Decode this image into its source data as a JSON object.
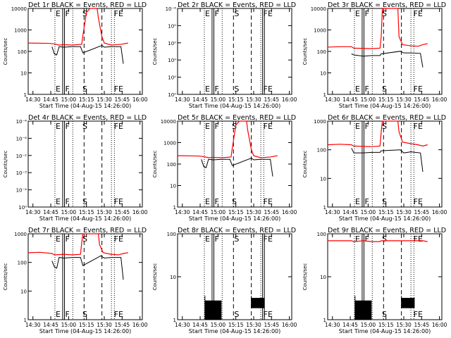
{
  "chart_data": {
    "type": "line",
    "colors": {
      "events": "#000000",
      "lld": "#ff0000"
    },
    "xtick_labels": [
      "14:30",
      "14:45",
      "15:00",
      "15:15",
      "15:30",
      "15:45",
      "16:00"
    ],
    "xlabel": "Start Time (04-Aug-15 14:26:00)",
    "ylabel": "Counts/sec",
    "x_range_minutes": [
      0,
      96
    ],
    "panels": [
      {
        "title": "Det 1r BLACK = Events, RED = LLD",
        "ylog": [
          1,
          14000
        ],
        "yticks": [
          "1",
          "10",
          "100",
          "1000",
          "10000"
        ],
        "lines_solid": [
          29,
          30.5
        ],
        "lines_dashed": [
          47,
          62
        ],
        "lines_dotted": [
          22.5,
          37.5,
          70,
          72.5
        ],
        "markers": [
          {
            "text": "E",
            "x": 22.5
          },
          {
            "text": "F",
            "x": 30.5
          },
          {
            "text": "S",
            "x": 45
          },
          {
            "text": "FE",
            "x": 71.5
          }
        ],
        "lld": [
          [
            0,
            300
          ],
          [
            18,
            290
          ],
          [
            22,
            270
          ],
          [
            26,
            240
          ],
          [
            30,
            250
          ],
          [
            37,
            240
          ],
          [
            45,
            260
          ],
          [
            46,
            700
          ],
          [
            49,
            9000
          ],
          [
            52,
            14000
          ],
          [
            58,
            14000
          ],
          [
            59,
            5000
          ],
          [
            62,
            600
          ],
          [
            64,
            300
          ],
          [
            70,
            240
          ],
          [
            74,
            250
          ],
          [
            78,
            260
          ],
          [
            84,
            300
          ]
        ],
        "events": [
          [
            20,
            200
          ],
          [
            22,
            90
          ],
          [
            24,
            80
          ],
          [
            26,
            200
          ],
          [
            30,
            190
          ],
          [
            37,
            200
          ],
          [
            44,
            200
          ],
          [
            46,
            100
          ],
          [
            62,
            230
          ],
          [
            64,
            190
          ],
          [
            70,
            200
          ],
          [
            78,
            200
          ],
          [
            80,
            30
          ]
        ]
      },
      {
        "title": "Det 2r BLACK = Events, RED = LLD",
        "ylog": [
          1,
          1.2
        ],
        "yticks": [
          "10⁰",
          "10⁰",
          "10⁰",
          "10⁰",
          "10⁰",
          "10⁻⁶"
        ],
        "lines_solid": [
          29,
          30.5,
          71.5,
          73
        ],
        "lines_dashed": [
          47,
          62
        ],
        "lines_dotted": [
          22.5,
          37.5,
          70
        ],
        "markers": [
          {
            "text": "E",
            "x": 22.5
          },
          {
            "text": "F",
            "x": 30.5
          },
          {
            "text": "S",
            "x": 47
          },
          {
            "text": "FE",
            "x": 71.5
          }
        ],
        "lld": [],
        "events": []
      },
      {
        "title": "Det 3r BLACK = Events, RED = LLD",
        "ylog": [
          1,
          14000
        ],
        "yticks": [
          "1",
          "10",
          "100",
          "1000",
          "10000"
        ],
        "lines_solid": [
          29,
          30.5
        ],
        "lines_dashed": [
          47,
          62
        ],
        "lines_dotted": [
          22.5,
          37.5,
          70,
          72.5
        ],
        "markers": [
          {
            "text": "E",
            "x": 22.5
          },
          {
            "text": "F",
            "x": 30.5
          },
          {
            "text": "S",
            "x": 45
          },
          {
            "text": "FE",
            "x": 71.5
          }
        ],
        "lld": [
          [
            0,
            190
          ],
          [
            10,
            200
          ],
          [
            20,
            200
          ],
          [
            22,
            170
          ],
          [
            30,
            165
          ],
          [
            37,
            160
          ],
          [
            44,
            170
          ],
          [
            45,
            600
          ],
          [
            46,
            14000
          ],
          [
            59,
            14000
          ],
          [
            60,
            600
          ],
          [
            63,
            250
          ],
          [
            70,
            220
          ],
          [
            76,
            210
          ],
          [
            80,
            250
          ],
          [
            84,
            280
          ]
        ],
        "events": [
          [
            20,
            90
          ],
          [
            22,
            80
          ],
          [
            30,
            70
          ],
          [
            37,
            75
          ],
          [
            44,
            75
          ],
          [
            45,
            90
          ],
          [
            61,
            120
          ],
          [
            64,
            100
          ],
          [
            70,
            100
          ],
          [
            78,
            95
          ],
          [
            80,
            20
          ]
        ]
      },
      {
        "title": "Det 4r BLACK = Events, RED = LLD",
        "ylog": [
          1,
          1.2
        ],
        "yticks": [
          "10⁰",
          "10⁻⁴",
          "10⁻³",
          "10⁻²",
          "10⁻⁶",
          "10⁻⁴"
        ],
        "lines_solid": [
          29,
          30.5
        ],
        "lines_dashed": [
          47,
          62
        ],
        "lines_dotted": [
          22.5,
          37.5,
          70,
          72.5
        ],
        "markers": [
          {
            "text": "E",
            "x": 22.5
          },
          {
            "text": "F",
            "x": 30.5
          },
          {
            "text": "S",
            "x": 45
          },
          {
            "text": "FE",
            "x": 71.5
          }
        ],
        "lld": [],
        "events": []
      },
      {
        "title": "Det 5r BLACK = Events, RED = LLD",
        "ylog": [
          1,
          14000
        ],
        "yticks": [
          "1",
          "10",
          "100",
          "1000",
          "10000"
        ],
        "lines_solid": [
          29,
          30.5
        ],
        "lines_dashed": [
          47,
          62
        ],
        "lines_dotted": [
          22.5,
          37.5,
          70,
          72.5
        ],
        "markers": [
          {
            "text": "E",
            "x": 22.5
          },
          {
            "text": "F",
            "x": 30.5
          },
          {
            "text": "S",
            "x": 45
          },
          {
            "text": "FE",
            "x": 71.5
          }
        ],
        "lld": [
          [
            0,
            300
          ],
          [
            18,
            290
          ],
          [
            22,
            270
          ],
          [
            26,
            240
          ],
          [
            30,
            250
          ],
          [
            37,
            240
          ],
          [
            45,
            260
          ],
          [
            46,
            700
          ],
          [
            49,
            9000
          ],
          [
            52,
            14000
          ],
          [
            58,
            14000
          ],
          [
            59,
            5000
          ],
          [
            62,
            600
          ],
          [
            64,
            300
          ],
          [
            70,
            240
          ],
          [
            74,
            250
          ],
          [
            78,
            260
          ],
          [
            84,
            300
          ]
        ],
        "events": [
          [
            20,
            200
          ],
          [
            22,
            90
          ],
          [
            24,
            80
          ],
          [
            26,
            200
          ],
          [
            30,
            190
          ],
          [
            37,
            200
          ],
          [
            44,
            200
          ],
          [
            46,
            100
          ],
          [
            62,
            230
          ],
          [
            64,
            190
          ],
          [
            70,
            200
          ],
          [
            78,
            200
          ],
          [
            80,
            30
          ]
        ]
      },
      {
        "title": "Det 6r BLACK = Events, RED = LLD",
        "ylog": [
          1,
          1500
        ],
        "yticks": [
          "1",
          "10",
          "100",
          "1000"
        ],
        "lines_solid": [
          29,
          30.5
        ],
        "lines_dashed": [
          47,
          62
        ],
        "lines_dotted": [
          22.5,
          37.5,
          70,
          72.5
        ],
        "markers": [
          {
            "text": "E",
            "x": 22.5
          },
          {
            "text": "F",
            "x": 30.5
          },
          {
            "text": "S",
            "x": 45
          },
          {
            "text": "FE",
            "x": 71.5
          }
        ],
        "lld": [
          [
            0,
            200
          ],
          [
            10,
            210
          ],
          [
            20,
            200
          ],
          [
            22,
            180
          ],
          [
            30,
            175
          ],
          [
            37,
            170
          ],
          [
            44,
            180
          ],
          [
            45,
            600
          ],
          [
            46,
            1500
          ],
          [
            59,
            1500
          ],
          [
            60,
            600
          ],
          [
            63,
            250
          ],
          [
            70,
            220
          ],
          [
            76,
            200
          ],
          [
            80,
            180
          ],
          [
            84,
            200
          ]
        ],
        "events": [
          [
            20,
            150
          ],
          [
            22,
            100
          ],
          [
            30,
            100
          ],
          [
            37,
            105
          ],
          [
            44,
            105
          ],
          [
            45,
            120
          ],
          [
            61,
            130
          ],
          [
            64,
            100
          ],
          [
            70,
            110
          ],
          [
            78,
            100
          ],
          [
            80,
            20
          ]
        ]
      },
      {
        "title": "Det 7r BLACK = Events, RED = LLD",
        "ylog": [
          1,
          1500
        ],
        "yticks": [
          "1",
          "10",
          "100",
          "1000"
        ],
        "lines_solid": [
          29,
          30.5
        ],
        "lines_dashed": [
          47,
          62
        ],
        "lines_dotted": [
          22.5,
          37.5,
          70,
          72.5
        ],
        "markers": [
          {
            "text": "E",
            "x": 22.5
          },
          {
            "text": "F",
            "x": 30.5
          },
          {
            "text": "S",
            "x": 45
          },
          {
            "text": "FE",
            "x": 71.5
          }
        ],
        "lld": [
          [
            0,
            300
          ],
          [
            10,
            310
          ],
          [
            20,
            280
          ],
          [
            22,
            250
          ],
          [
            30,
            260
          ],
          [
            37,
            250
          ],
          [
            44,
            260
          ],
          [
            45,
            700
          ],
          [
            46,
            1500
          ],
          [
            59,
            1500
          ],
          [
            60,
            600
          ],
          [
            63,
            300
          ],
          [
            70,
            260
          ],
          [
            76,
            250
          ],
          [
            80,
            280
          ],
          [
            84,
            300
          ]
        ],
        "events": [
          [
            20,
            150
          ],
          [
            22,
            90
          ],
          [
            24,
            80
          ],
          [
            26,
            200
          ],
          [
            30,
            190
          ],
          [
            37,
            200
          ],
          [
            44,
            200
          ],
          [
            46,
            100
          ],
          [
            61,
            230
          ],
          [
            64,
            190
          ],
          [
            70,
            200
          ],
          [
            78,
            200
          ],
          [
            80,
            30
          ]
        ]
      },
      {
        "title": "Det 8r BLACK = Events, RED = LLD",
        "ylog": [
          1,
          150
        ],
        "yticks": [
          "1",
          "10",
          "100"
        ],
        "lines_solid": [
          29,
          30.5,
          71.5,
          73
        ],
        "lines_dashed": [
          47,
          62
        ],
        "lines_dotted": [
          22.5,
          37.5,
          70
        ],
        "markers": [
          {
            "text": "E",
            "x": 22.5
          },
          {
            "text": "F",
            "x": 30.5
          },
          {
            "text": "S",
            "x": 47
          },
          {
            "text": "FE",
            "x": 71.5
          }
        ],
        "lld": [],
        "events_noise": [
          [
            23,
            37,
            3,
            1,
            4
          ],
          [
            62,
            73,
            3.5,
            2,
            4
          ]
        ]
      },
      {
        "title": "Det 9r BLACK = Events, RED = LLD",
        "ylog": [
          1,
          150
        ],
        "yticks": [
          "1",
          "10",
          "100"
        ],
        "lines_solid": [
          29,
          30.5
        ],
        "lines_dashed": [
          47,
          62
        ],
        "lines_dotted": [
          22.5,
          37.5,
          70,
          72.5
        ],
        "markers": [
          {
            "text": "E",
            "x": 22.5
          },
          {
            "text": "F",
            "x": 30.5
          },
          {
            "text": "S",
            "x": 45
          },
          {
            "text": "FE",
            "x": 71.5
          }
        ],
        "lld": [
          [
            0,
            100
          ],
          [
            10,
            100
          ],
          [
            20,
            100
          ],
          [
            22,
            95
          ],
          [
            30,
            100
          ],
          [
            37,
            95
          ],
          [
            44,
            95
          ],
          [
            45,
            100
          ],
          [
            46,
            100
          ],
          [
            59,
            100
          ],
          [
            60,
            100
          ],
          [
            63,
            100
          ],
          [
            70,
            100
          ],
          [
            76,
            100
          ],
          [
            80,
            100
          ],
          [
            84,
            95
          ]
        ],
        "events_noise": [
          [
            23,
            37,
            3,
            1,
            4
          ],
          [
            62,
            73,
            3.5,
            2,
            4
          ]
        ]
      }
    ]
  }
}
